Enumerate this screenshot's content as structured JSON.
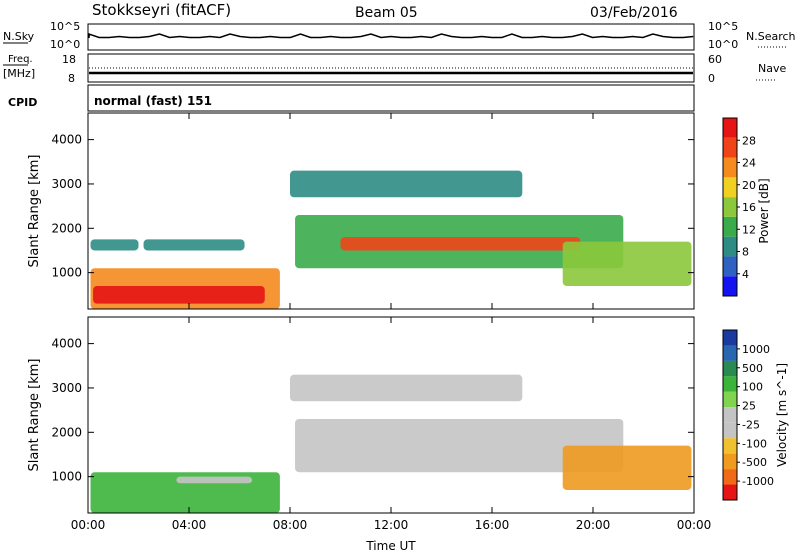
{
  "header": {
    "station": "Stokkseyri (fitACF)",
    "beam": "Beam 05",
    "date": "03/Feb/2016"
  },
  "labels": {
    "nsky": "N.Sky",
    "nsearch": "N.Search",
    "freq": "Freq.",
    "mhz": "[MHz]",
    "cpid": "CPID",
    "nave": "Nave",
    "cpid_value": "normal (fast) 151",
    "ns_top": "10^5",
    "ns_bot": "10^0",
    "freq_top": "18",
    "freq_bot": "8",
    "nave_top": "60",
    "nave_bot": "0"
  },
  "colors": {
    "power": [
      "#1414f0",
      "#2f61c2",
      "#2e8c84",
      "#3aab4b",
      "#8cc83c",
      "#f0d020",
      "#f58a1e",
      "#f04418",
      "#e61414"
    ],
    "velocity": [
      "#1a3aa0",
      "#2866b0",
      "#2a8a52",
      "#3cb43c",
      "#80d450",
      "#c4c4c4",
      "#c4c4c4",
      "#f0c030",
      "#f09a20",
      "#f06a18",
      "#e61414"
    ]
  },
  "chart_data": [
    {
      "type": "heatmap",
      "name": "power",
      "xlabel": "",
      "ylabel": "Slant Range [km]",
      "x_ticks": [],
      "y_ticks": [
        "1000",
        "2000",
        "3000",
        "4000"
      ],
      "x_range_hours": [
        0,
        24
      ],
      "y_range_km": [
        180,
        4600
      ],
      "colorbar": {
        "label": "Power [dB]",
        "ticks": [
          "4",
          "8",
          "12",
          "16",
          "20",
          "24",
          "28"
        ],
        "range": [
          0,
          32
        ]
      },
      "regions": [
        {
          "x": [
            0.1,
            7.6
          ],
          "y": [
            180,
            1100
          ],
          "value": 22
        },
        {
          "x": [
            0.2,
            7.0
          ],
          "y": [
            300,
            700
          ],
          "value": 29
        },
        {
          "x": [
            0.1,
            2.0
          ],
          "y": [
            1500,
            1750
          ],
          "value": 10
        },
        {
          "x": [
            2.2,
            6.2
          ],
          "y": [
            1500,
            1750
          ],
          "value": 9
        },
        {
          "x": [
            8.2,
            21.2
          ],
          "y": [
            1100,
            2300
          ],
          "value": 14
        },
        {
          "x": [
            10.0,
            19.5
          ],
          "y": [
            1500,
            1800
          ],
          "value": 26
        },
        {
          "x": [
            8.0,
            17.2
          ],
          "y": [
            2700,
            3300
          ],
          "value": 8
        },
        {
          "x": [
            18.8,
            23.9
          ],
          "y": [
            700,
            1700
          ],
          "value": 15
        }
      ]
    },
    {
      "type": "heatmap",
      "name": "velocity",
      "xlabel": "Time UT",
      "ylabel": "Slant Range [km]",
      "x_ticks": [
        "00:00",
        "04:00",
        "08:00",
        "12:00",
        "16:00",
        "20:00",
        "00:00"
      ],
      "y_ticks": [
        "1000",
        "2000",
        "3000",
        "4000"
      ],
      "x_range_hours": [
        0,
        24
      ],
      "y_range_km": [
        180,
        4600
      ],
      "colorbar": {
        "label": "Velocity [m s^-1]",
        "ticks": [
          "1000",
          "500",
          "100",
          "25",
          "-25",
          "-100",
          "-500",
          "-1000"
        ]
      },
      "regions": [
        {
          "x": [
            0.1,
            7.6
          ],
          "y": [
            180,
            1100
          ],
          "value": 300
        },
        {
          "x": [
            3.5,
            6.5
          ],
          "y": [
            850,
            1000
          ],
          "value": 0
        },
        {
          "x": [
            8.2,
            21.2
          ],
          "y": [
            1100,
            2300
          ],
          "value": 0
        },
        {
          "x": [
            8.0,
            17.2
          ],
          "y": [
            2700,
            3300
          ],
          "value": 0
        },
        {
          "x": [
            18.8,
            23.9
          ],
          "y": [
            700,
            1700
          ],
          "value": -300
        }
      ]
    }
  ]
}
